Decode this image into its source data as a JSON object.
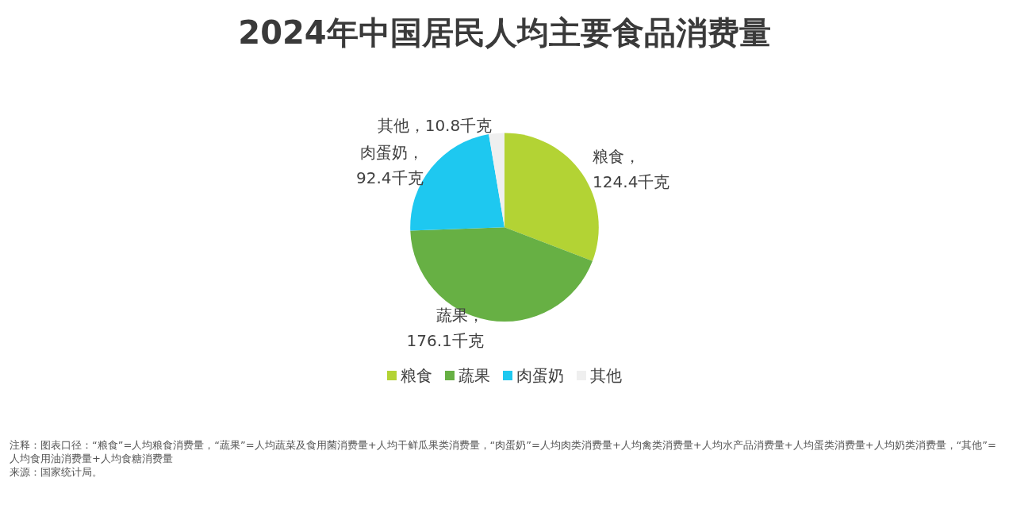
{
  "chart_data": {
    "type": "pie",
    "title": "2024年中国居民人均主要食品消费量",
    "categories": [
      "粮食",
      "蔬果",
      "肉蛋奶",
      "其他"
    ],
    "values": [
      124.4,
      176.1,
      92.4,
      10.8
    ],
    "value_labels": [
      "，124.4千克",
      "，176.1千克",
      "，92.4千克",
      "，10.8千克"
    ],
    "colors": [
      "#b3d334",
      "#67b044",
      "#1ec8f0",
      "#efefef"
    ],
    "legend": "bottom",
    "annotations": [
      "注释：图表口径：“粮食”=人均粮食消费量，“蔬果”=人均蔬菜及食用菌消费量+人均干鲜瓜果类消费量，“肉蛋奶”=人均肉类消费量+人均禽类消费量+人均水产品消费量+人均蛋类消费量+人均奶类消费量，“其他”=人均食用油消费量+人均食糖消费量",
      "来源：国家统计局。"
    ]
  }
}
